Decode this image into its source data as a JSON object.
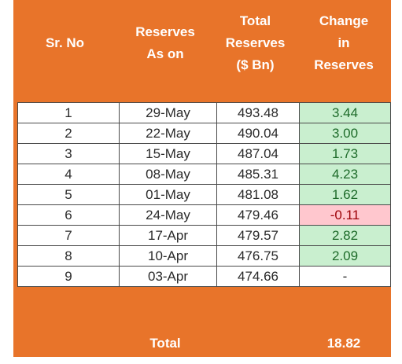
{
  "colors": {
    "header_background": "#e8742a",
    "header_text": "#ffffff",
    "positive_fill": "#c9efcf",
    "positive_text": "#1e6b2a",
    "negative_fill": "#ffc7ce",
    "negative_text": "#9c0006"
  },
  "table": {
    "headers": [
      "Sr. No",
      "Reserves\nAs on",
      "Total\nReserves\n($ Bn)",
      "Change\nin\nReserves"
    ],
    "rows": [
      {
        "sr": "1",
        "date": "29-May",
        "total": "493.48",
        "change": "3.44",
        "status": "pos"
      },
      {
        "sr": "2",
        "date": "22-May",
        "total": "490.04",
        "change": "3.00",
        "status": "pos"
      },
      {
        "sr": "3",
        "date": "15-May",
        "total": "487.04",
        "change": "1.73",
        "status": "pos"
      },
      {
        "sr": "4",
        "date": "08-May",
        "total": "485.31",
        "change": "4.23",
        "status": "pos"
      },
      {
        "sr": "5",
        "date": "01-May",
        "total": "481.08",
        "change": "1.62",
        "status": "pos"
      },
      {
        "sr": "6",
        "date": "24-May",
        "total": "479.46",
        "change": "-0.11",
        "status": "neg"
      },
      {
        "sr": "7",
        "date": "17-Apr",
        "total": "479.57",
        "change": "2.82",
        "status": "pos"
      },
      {
        "sr": "8",
        "date": "10-Apr",
        "total": "476.75",
        "change": "2.09",
        "status": "pos"
      },
      {
        "sr": "9",
        "date": "03-Apr",
        "total": "474.66",
        "change": "-",
        "status": "none"
      }
    ],
    "footer": {
      "label": "Total",
      "value": "18.82"
    }
  }
}
